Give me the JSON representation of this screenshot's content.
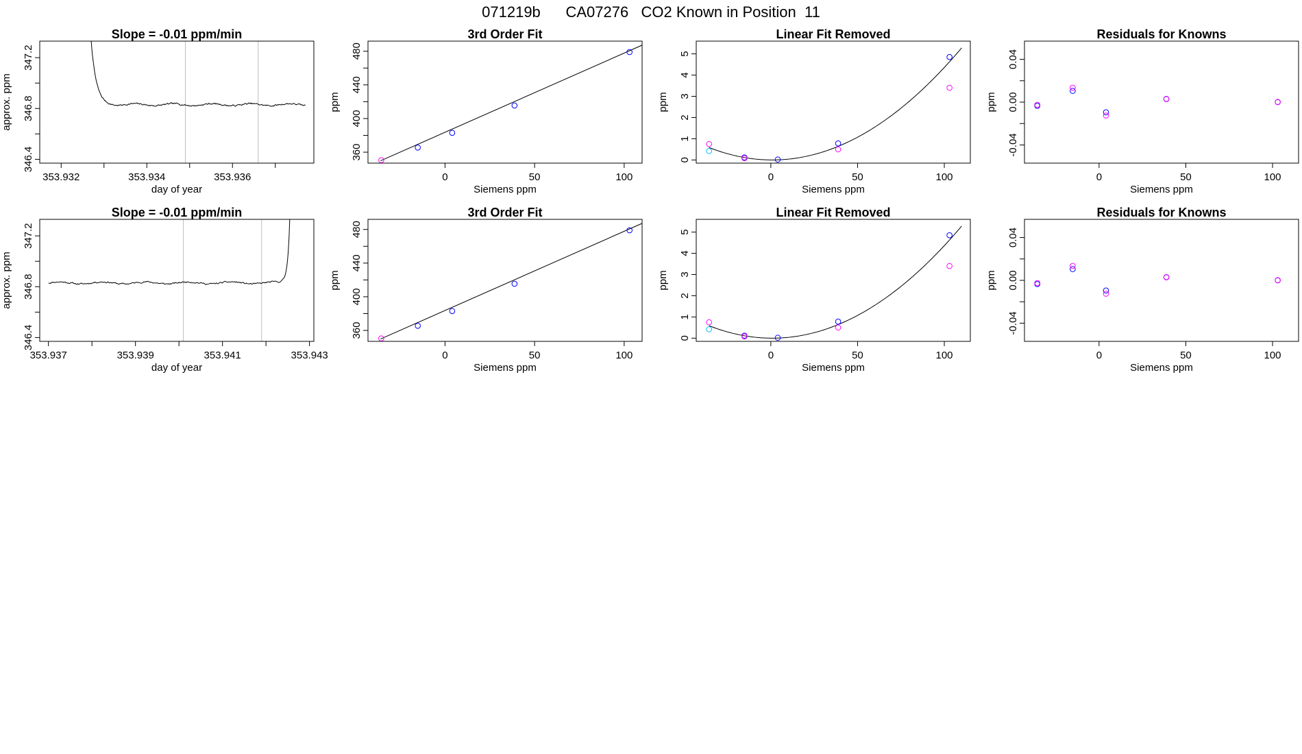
{
  "figure_title": "071219b      CA07276   CO2 Known in Position  11",
  "colors": {
    "blue": "#0000ff",
    "magenta": "#ff00ff",
    "purple": "#9933ff",
    "cyan": "#00bfff",
    "line": "#000000",
    "grid": "#bebebe"
  },
  "chart_data": [
    {
      "id": "r0c0",
      "type": "line",
      "title": "Slope =  -0.01  ppm/min",
      "xlabel": "day of year",
      "ylabel": "approx. ppm",
      "xlim": [
        353.9315,
        353.9379
      ],
      "ylim": [
        346.37,
        347.33
      ],
      "xticks": [
        353.932,
        353.933,
        353.934,
        353.935,
        353.936,
        353.937
      ],
      "xtick_labels": [
        "353.932",
        "",
        "353.934",
        "",
        "353.936",
        ""
      ],
      "yticks": [
        346.4,
        346.6,
        346.8,
        347.0,
        347.2
      ],
      "ytick_labels": [
        "346.4",
        "",
        "346.8",
        "",
        "347.2"
      ],
      "vlines": [
        353.9349,
        353.9366
      ],
      "trace": {
        "type": "plateau",
        "x_start": 353.9326,
        "x_end": 353.9377,
        "level": 346.83,
        "spike_side": "start",
        "spike_width": 0.0003,
        "noise": 0.012,
        "seed": 7
      }
    },
    {
      "id": "r0c1",
      "type": "scatter",
      "title": "3rd Order Fit",
      "xlabel": "Siemens ppm",
      "ylabel": "ppm",
      "xlim": [
        -43,
        110
      ],
      "ylim": [
        347,
        492
      ],
      "xticks": [
        0,
        50,
        100
      ],
      "xtick_labels": [
        "0",
        "50",
        "100"
      ],
      "yticks": [
        360,
        380,
        400,
        420,
        440,
        460,
        480
      ],
      "ytick_labels": [
        "360",
        "",
        "400",
        "",
        "440",
        "",
        "480"
      ],
      "fit_line": {
        "x": [
          -36,
          110
        ],
        "y": [
          349.8,
          487.2
        ]
      },
      "points": [
        {
          "x": -35.6,
          "y": 350.5,
          "color": "magenta"
        },
        {
          "x": -15.2,
          "y": 365.5,
          "color": "blue"
        },
        {
          "x": 4.0,
          "y": 383.0,
          "color": "blue"
        },
        {
          "x": 38.8,
          "y": 415.5,
          "color": "blue"
        },
        {
          "x": 103.0,
          "y": 479.0,
          "color": "blue"
        }
      ]
    },
    {
      "id": "r0c2",
      "type": "scatter",
      "title": "Linear Fit Removed",
      "xlabel": "Siemens ppm",
      "ylabel": "ppm",
      "xlim": [
        -43,
        115
      ],
      "ylim": [
        -0.15,
        5.6
      ],
      "xticks": [
        0,
        50,
        100
      ],
      "xtick_labels": [
        "0",
        "50",
        "100"
      ],
      "yticks": [
        0,
        1,
        2,
        3,
        4,
        5
      ],
      "ytick_labels": [
        "0",
        "1",
        "2",
        "3",
        "4",
        "5"
      ],
      "fit_curve": {
        "type": "quadratic",
        "x_min": -35.6,
        "x_max": 110,
        "a": 0.000443,
        "x0": 0.8,
        "c": 0.0
      },
      "points": [
        {
          "x": -35.6,
          "y": 0.75,
          "color": "magenta"
        },
        {
          "x": -35.6,
          "y": 0.42,
          "color": "cyan"
        },
        {
          "x": -15.2,
          "y": 0.12,
          "color": "blue"
        },
        {
          "x": -15.2,
          "y": 0.08,
          "color": "magenta"
        },
        {
          "x": 4.0,
          "y": 0.02,
          "color": "blue"
        },
        {
          "x": 38.8,
          "y": 0.78,
          "color": "blue"
        },
        {
          "x": 38.8,
          "y": 0.5,
          "color": "magenta"
        },
        {
          "x": 103.0,
          "y": 4.85,
          "color": "blue"
        },
        {
          "x": 103.0,
          "y": 3.4,
          "color": "magenta"
        }
      ]
    },
    {
      "id": "r0c3",
      "type": "scatter",
      "title": "Residuals for Knowns",
      "xlabel": "Siemens ppm",
      "ylabel": "ppm",
      "xlim": [
        -43,
        115
      ],
      "ylim": [
        -0.057,
        0.057
      ],
      "xticks": [
        0,
        50,
        100
      ],
      "xtick_labels": [
        "0",
        "50",
        "100"
      ],
      "yticks": [
        -0.04,
        -0.02,
        0.0,
        0.02,
        0.04
      ],
      "ytick_labels": [
        "-0.04",
        "",
        "0.00",
        "",
        "0.04"
      ],
      "points": [
        {
          "x": -35.6,
          "y": -0.0035,
          "color": "blue"
        },
        {
          "x": -35.6,
          "y": -0.0025,
          "color": "magenta"
        },
        {
          "x": -15.2,
          "y": 0.0105,
          "color": "blue"
        },
        {
          "x": -15.2,
          "y": 0.0135,
          "color": "magenta"
        },
        {
          "x": 4.0,
          "y": -0.0095,
          "color": "blue"
        },
        {
          "x": 4.0,
          "y": -0.0125,
          "color": "magenta"
        },
        {
          "x": 38.8,
          "y": 0.003,
          "color": "blue"
        },
        {
          "x": 38.8,
          "y": 0.0028,
          "color": "magenta"
        },
        {
          "x": 103.0,
          "y": 0.0,
          "color": "blue"
        },
        {
          "x": 103.0,
          "y": 0.0002,
          "color": "magenta"
        }
      ]
    },
    {
      "id": "r1c0",
      "type": "line",
      "title": "Slope =  -0.01  ppm/min",
      "xlabel": "day of year",
      "ylabel": "approx. ppm",
      "xlim": [
        353.9368,
        353.9431
      ],
      "ylim": [
        346.37,
        347.33
      ],
      "xticks": [
        353.937,
        353.938,
        353.939,
        353.94,
        353.941,
        353.942,
        353.943
      ],
      "xtick_labels": [
        "353.937",
        "",
        "353.939",
        "",
        "353.941",
        "",
        "353.943"
      ],
      "yticks": [
        346.4,
        346.6,
        346.8,
        347.0,
        347.2
      ],
      "ytick_labels": [
        "346.4",
        "",
        "346.8",
        "",
        "347.2"
      ],
      "vlines": [
        353.9401,
        353.9419
      ],
      "trace": {
        "type": "plateau",
        "x_start": 353.937,
        "x_end": 353.9426,
        "level": 346.83,
        "spike_side": "end",
        "spike_width": 0.00015,
        "noise": 0.012,
        "seed": 11
      }
    },
    {
      "id": "r1c1",
      "type": "scatter",
      "title": "3rd Order Fit",
      "xlabel": "Siemens ppm",
      "ylabel": "ppm",
      "xlim": [
        -43,
        110
      ],
      "ylim": [
        347,
        492
      ],
      "xticks": [
        0,
        50,
        100
      ],
      "xtick_labels": [
        "0",
        "50",
        "100"
      ],
      "yticks": [
        360,
        380,
        400,
        420,
        440,
        460,
        480
      ],
      "ytick_labels": [
        "360",
        "",
        "400",
        "",
        "440",
        "",
        "480"
      ],
      "fit_line": {
        "x": [
          -36,
          110
        ],
        "y": [
          349.8,
          487.2
        ]
      },
      "points": [
        {
          "x": -35.6,
          "y": 350.5,
          "color": "magenta"
        },
        {
          "x": -15.2,
          "y": 365.5,
          "color": "blue"
        },
        {
          "x": 4.0,
          "y": 383.0,
          "color": "blue"
        },
        {
          "x": 38.8,
          "y": 415.5,
          "color": "blue"
        },
        {
          "x": 103.0,
          "y": 479.0,
          "color": "blue"
        }
      ]
    },
    {
      "id": "r1c2",
      "type": "scatter",
      "title": "Linear Fit Removed",
      "xlabel": "Siemens ppm",
      "ylabel": "ppm",
      "xlim": [
        -43,
        115
      ],
      "ylim": [
        -0.15,
        5.6
      ],
      "xticks": [
        0,
        50,
        100
      ],
      "xtick_labels": [
        "0",
        "50",
        "100"
      ],
      "yticks": [
        0,
        1,
        2,
        3,
        4,
        5
      ],
      "ytick_labels": [
        "0",
        "1",
        "2",
        "3",
        "4",
        "5"
      ],
      "fit_curve": {
        "type": "quadratic",
        "x_min": -35.6,
        "x_max": 110,
        "a": 0.000443,
        "x0": 0.8,
        "c": 0.0
      },
      "points": [
        {
          "x": -35.6,
          "y": 0.75,
          "color": "magenta"
        },
        {
          "x": -35.6,
          "y": 0.42,
          "color": "cyan"
        },
        {
          "x": -15.2,
          "y": 0.12,
          "color": "blue"
        },
        {
          "x": -15.2,
          "y": 0.08,
          "color": "magenta"
        },
        {
          "x": 4.0,
          "y": 0.02,
          "color": "blue"
        },
        {
          "x": 38.8,
          "y": 0.78,
          "color": "blue"
        },
        {
          "x": 38.8,
          "y": 0.5,
          "color": "magenta"
        },
        {
          "x": 103.0,
          "y": 4.85,
          "color": "blue"
        },
        {
          "x": 103.0,
          "y": 3.4,
          "color": "magenta"
        }
      ]
    },
    {
      "id": "r1c3",
      "type": "scatter",
      "title": "Residuals for Knowns",
      "xlabel": "Siemens ppm",
      "ylabel": "ppm",
      "xlim": [
        -43,
        115
      ],
      "ylim": [
        -0.057,
        0.057
      ],
      "xticks": [
        0,
        50,
        100
      ],
      "xtick_labels": [
        "0",
        "50",
        "100"
      ],
      "yticks": [
        -0.04,
        -0.02,
        0.0,
        0.02,
        0.04
      ],
      "ytick_labels": [
        "-0.04",
        "",
        "0.00",
        "",
        "0.04"
      ],
      "points": [
        {
          "x": -35.6,
          "y": -0.0035,
          "color": "blue"
        },
        {
          "x": -35.6,
          "y": -0.0025,
          "color": "magenta"
        },
        {
          "x": -15.2,
          "y": 0.0105,
          "color": "blue"
        },
        {
          "x": -15.2,
          "y": 0.0135,
          "color": "magenta"
        },
        {
          "x": 4.0,
          "y": -0.0095,
          "color": "blue"
        },
        {
          "x": 4.0,
          "y": -0.0125,
          "color": "magenta"
        },
        {
          "x": 38.8,
          "y": 0.003,
          "color": "blue"
        },
        {
          "x": 38.8,
          "y": 0.0028,
          "color": "magenta"
        },
        {
          "x": 103.0,
          "y": 0.0,
          "color": "blue"
        },
        {
          "x": 103.0,
          "y": 0.0002,
          "color": "magenta"
        }
      ]
    }
  ]
}
